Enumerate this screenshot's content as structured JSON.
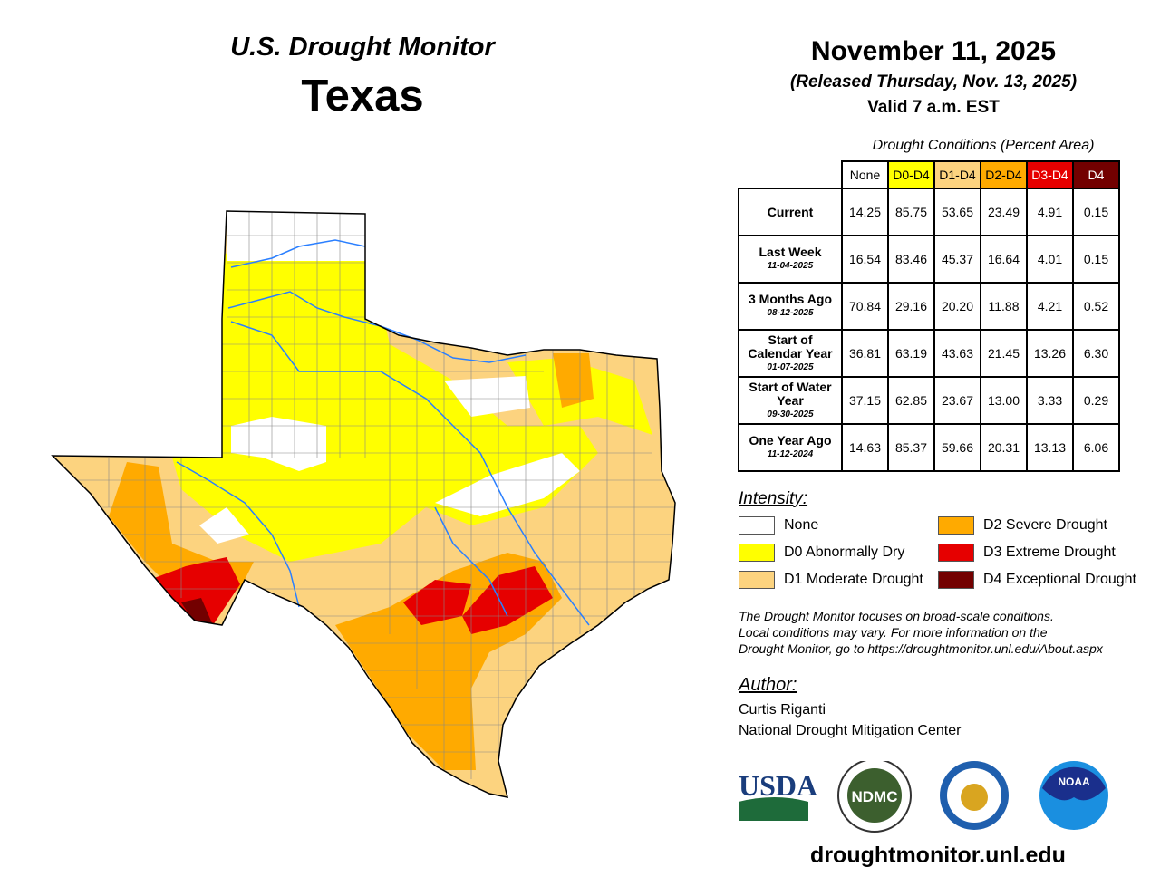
{
  "header": {
    "subtitle": "U.S. Drought Monitor",
    "state": "Texas"
  },
  "date_block": {
    "date": "November 11, 2025",
    "released": "(Released Thursday, Nov. 13, 2025)",
    "valid": "Valid 7 a.m. EST"
  },
  "table": {
    "caption": "Drought Conditions (Percent Area)",
    "columns": [
      {
        "label": "None",
        "color": "#ffffff",
        "text": "#000000"
      },
      {
        "label": "D0-D4",
        "color": "#ffff00",
        "text": "#000000"
      },
      {
        "label": "D1-D4",
        "color": "#fcd37f",
        "text": "#000000"
      },
      {
        "label": "D2-D4",
        "color": "#ffaa00",
        "text": "#000000"
      },
      {
        "label": "D3-D4",
        "color": "#e60000",
        "text": "#ffffff"
      },
      {
        "label": "D4",
        "color": "#730000",
        "text": "#ffffff"
      }
    ],
    "rows": [
      {
        "label": "Current",
        "date": "",
        "values": [
          "14.25",
          "85.75",
          "53.65",
          "23.49",
          "4.91",
          "0.15"
        ]
      },
      {
        "label": "Last Week",
        "date": "11-04-2025",
        "values": [
          "16.54",
          "83.46",
          "45.37",
          "16.64",
          "4.01",
          "0.15"
        ]
      },
      {
        "label": "3 Months Ago",
        "date": "08-12-2025",
        "values": [
          "70.84",
          "29.16",
          "20.20",
          "11.88",
          "4.21",
          "0.52"
        ]
      },
      {
        "label": "Start of Calendar Year",
        "date": "01-07-2025",
        "values": [
          "36.81",
          "63.19",
          "43.63",
          "21.45",
          "13.26",
          "6.30"
        ]
      },
      {
        "label": "Start of Water Year",
        "date": "09-30-2025",
        "values": [
          "37.15",
          "62.85",
          "23.67",
          "13.00",
          "3.33",
          "0.29"
        ]
      },
      {
        "label": "One Year Ago",
        "date": "11-12-2024",
        "values": [
          "14.63",
          "85.37",
          "59.66",
          "20.31",
          "13.13",
          "6.06"
        ]
      }
    ]
  },
  "legend": {
    "title": "Intensity:",
    "items": [
      {
        "label": "None",
        "color": "#ffffff"
      },
      {
        "label": "D0 Abnormally Dry",
        "color": "#ffff00"
      },
      {
        "label": "D1 Moderate Drought",
        "color": "#fcd37f"
      },
      {
        "label": "D2 Severe Drought",
        "color": "#ffaa00"
      },
      {
        "label": "D3 Extreme Drought",
        "color": "#e60000"
      },
      {
        "label": "D4 Exceptional Drought",
        "color": "#730000"
      }
    ]
  },
  "note": [
    "The Drought Monitor focuses on broad-scale conditions.",
    "Local conditions may vary. For more information on the",
    "Drought Monitor, go to https://droughtmonitor.unl.edu/About.aspx"
  ],
  "author": {
    "title": "Author:",
    "name": "Curtis Riganti",
    "org": "National Drought Mitigation Center"
  },
  "logos": {
    "usda": "USDA",
    "ndmc": "NDMC",
    "noaa": "NOAA"
  },
  "footer_url": "droughtmonitor.unl.edu"
}
